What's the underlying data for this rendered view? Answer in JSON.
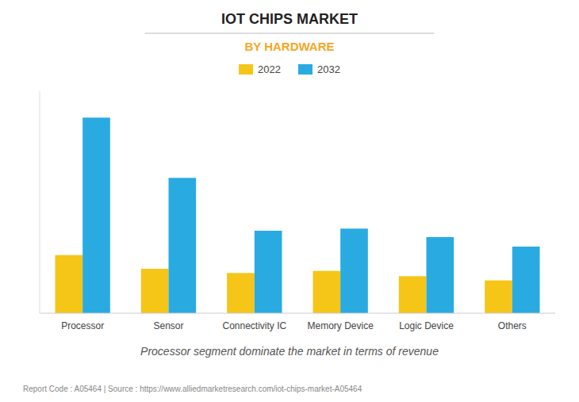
{
  "chart_data": {
    "type": "bar",
    "title": "IOT CHIPS MARKET",
    "subtitle": "BY HARDWARE",
    "categories": [
      "Processor",
      "Sensor",
      "Connectivity IC",
      "Memory Device",
      "Logic Device",
      "Others"
    ],
    "series": [
      {
        "name": "2022",
        "color": "#F5C518",
        "values": [
          5.5,
          4.2,
          3.8,
          4.0,
          3.5,
          3.1
        ]
      },
      {
        "name": "2032",
        "color": "#29ABE2",
        "values": [
          18.5,
          12.8,
          7.8,
          8.0,
          7.2,
          6.3
        ]
      }
    ],
    "ylim": [
      0,
      21
    ],
    "grid": false,
    "legend": "top",
    "tick_labels": "x",
    "annotations": [
      "Processor segment dominate the market in terms of revenue",
      "Report Code : A05464  |  Source : https://www.alliedmarketresearch.com/iot-chips-market-A05464"
    ]
  }
}
